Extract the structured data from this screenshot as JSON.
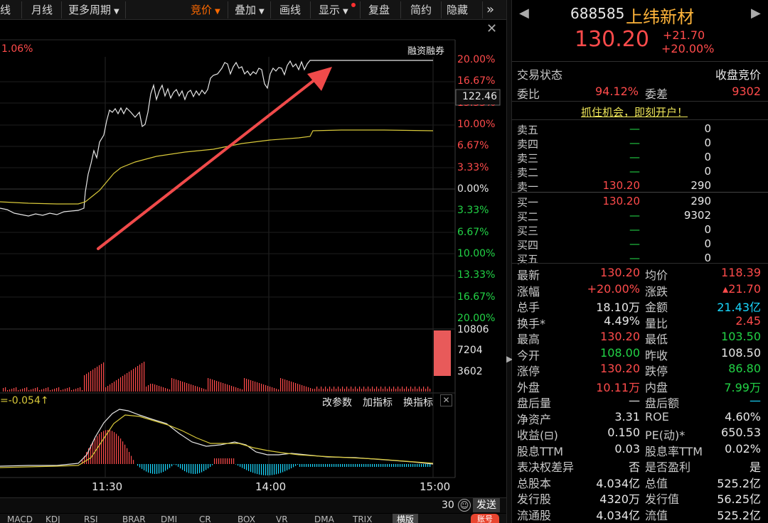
{
  "toolbar": {
    "items": [
      "线",
      "月线",
      "更多周期",
      "竞价",
      "叠加",
      "画线",
      "显示",
      "复盘",
      "简约",
      "隐藏"
    ],
    "more_arrow": "»"
  },
  "chart": {
    "left_pct": "1.06%",
    "margin_label": "融资融券",
    "price_tag": "122.46",
    "price_axis": [
      {
        "label": "20.00%",
        "tone": "red"
      },
      {
        "label": "16.67%",
        "tone": "red"
      },
      {
        "label": "13.33%",
        "tone": "red"
      },
      {
        "label": "10.00%",
        "tone": "red"
      },
      {
        "label": "6.67%",
        "tone": "red"
      },
      {
        "label": "3.33%",
        "tone": "red"
      },
      {
        "label": "0.00%",
        "tone": "white"
      },
      {
        "label": "3.33%",
        "tone": "green"
      },
      {
        "label": "6.67%",
        "tone": "green"
      },
      {
        "label": "10.00%",
        "tone": "green"
      },
      {
        "label": "13.33%",
        "tone": "green"
      },
      {
        "label": "16.67%",
        "tone": "green"
      },
      {
        "label": "20.00%",
        "tone": "green"
      }
    ],
    "volume_axis": [
      "10806",
      "7204",
      "3602"
    ],
    "macd_label": "=-0.054",
    "macd_buttons": [
      "改参数",
      "加指标",
      "换指标"
    ],
    "time_axis": [
      "11:30",
      "14:00",
      "15:00"
    ],
    "comment_count": "30",
    "send_label": "发送",
    "bottom_tabs": [
      "MACD",
      "KDJ",
      "RSI",
      "BRAR",
      "DMI",
      "CR",
      "BOX",
      "VR",
      "DMA",
      "TRIX"
    ],
    "bottom_active": "横版",
    "badge": "账号"
  },
  "stock": {
    "code": "688585",
    "name": "上纬新材",
    "price": "130.20",
    "change": "+21.70",
    "change_pct": "+20.00%",
    "prev_arrow": "◀",
    "next_arrow": "▶"
  },
  "status": {
    "label": "交易状态",
    "value": "收盘竞价"
  },
  "committee": {
    "ratio_label": "委比",
    "ratio": "94.12%",
    "diff_label": "委差",
    "diff": "9302"
  },
  "promo": "抓住机会，即刻开户！",
  "asks": [
    {
      "label": "卖五",
      "price": "—",
      "vol": "0"
    },
    {
      "label": "卖四",
      "price": "—",
      "vol": "0"
    },
    {
      "label": "卖三",
      "price": "—",
      "vol": "0"
    },
    {
      "label": "卖二",
      "price": "—",
      "vol": "0"
    },
    {
      "label": "卖一",
      "price": "130.20",
      "vol": "290"
    }
  ],
  "bids": [
    {
      "label": "买一",
      "price": "130.20",
      "vol": "290"
    },
    {
      "label": "买二",
      "price": "—",
      "vol": "9302"
    },
    {
      "label": "买三",
      "price": "—",
      "vol": "0"
    },
    {
      "label": "买四",
      "price": "—",
      "vol": "0"
    },
    {
      "label": "买五",
      "price": "—",
      "vol": "0"
    }
  ],
  "stats": [
    {
      "l1": "最新",
      "v1": "130.20",
      "c1": "red",
      "l2": "均价",
      "v2": "118.39",
      "c2": "red"
    },
    {
      "l1": "涨幅",
      "v1": "+20.00%",
      "c1": "red",
      "l2": "涨跌",
      "v2": "▴21.70",
      "c2": "red"
    },
    {
      "l1": "总手",
      "v1": "18.10万",
      "c1": "white",
      "l2": "金额",
      "v2": "21.43亿",
      "c2": "cyan"
    },
    {
      "l1": "换手*",
      "v1": "4.49%",
      "c1": "white",
      "l2": "量比",
      "v2": "2.45",
      "c2": "red"
    },
    {
      "l1": "最高",
      "v1": "130.20",
      "c1": "red",
      "l2": "最低",
      "v2": "103.50",
      "c2": "green"
    },
    {
      "l1": "今开",
      "v1": "108.00",
      "c1": "green",
      "l2": "昨收",
      "v2": "108.50",
      "c2": "white"
    },
    {
      "l1": "涨停",
      "v1": "130.20",
      "c1": "red",
      "l2": "跌停",
      "v2": "86.80",
      "c2": "green"
    },
    {
      "l1": "外盘",
      "v1": "10.11万",
      "c1": "red",
      "l2": "内盘",
      "v2": "7.99万",
      "c2": "green"
    },
    {
      "l1": "盘后量",
      "v1": "—",
      "c1": "white",
      "l2": "盘后额",
      "v2": "—",
      "c2": "cyan"
    },
    {
      "l1": "净资产",
      "v1": "3.31",
      "c1": "white",
      "l2": "ROE",
      "v2": "4.60%",
      "c2": "white"
    },
    {
      "l1": "收益(⊟)",
      "v1": "0.150",
      "c1": "white",
      "l2": "PE(动)*",
      "v2": "650.53",
      "c2": "white"
    },
    {
      "l1": "股息TTM",
      "v1": "0.03",
      "c1": "white",
      "l2": "股息率TTM",
      "v2": "0.02%",
      "c2": "white"
    },
    {
      "l1": "表决权差异",
      "v1": "否",
      "c1": "white",
      "l2": "是否盈利",
      "v2": "是",
      "c2": "white"
    },
    {
      "l1": "总股本",
      "v1": "4.034亿",
      "c1": "white",
      "l2": "总值",
      "v2": "525.2亿",
      "c2": "white"
    },
    {
      "l1": "发行股",
      "v1": "4320万",
      "c1": "white",
      "l2": "发行值",
      "v2": "56.25亿",
      "c2": "white"
    },
    {
      "l1": "流通股",
      "v1": "4.034亿",
      "c1": "white",
      "l2": "流值",
      "v2": "525.2亿",
      "c2": "white"
    }
  ],
  "colors": {
    "up": "#ff4b4b",
    "down": "#22d346",
    "accent": "#ff6a00",
    "cyan": "#19d8ff",
    "background": "#000000"
  }
}
